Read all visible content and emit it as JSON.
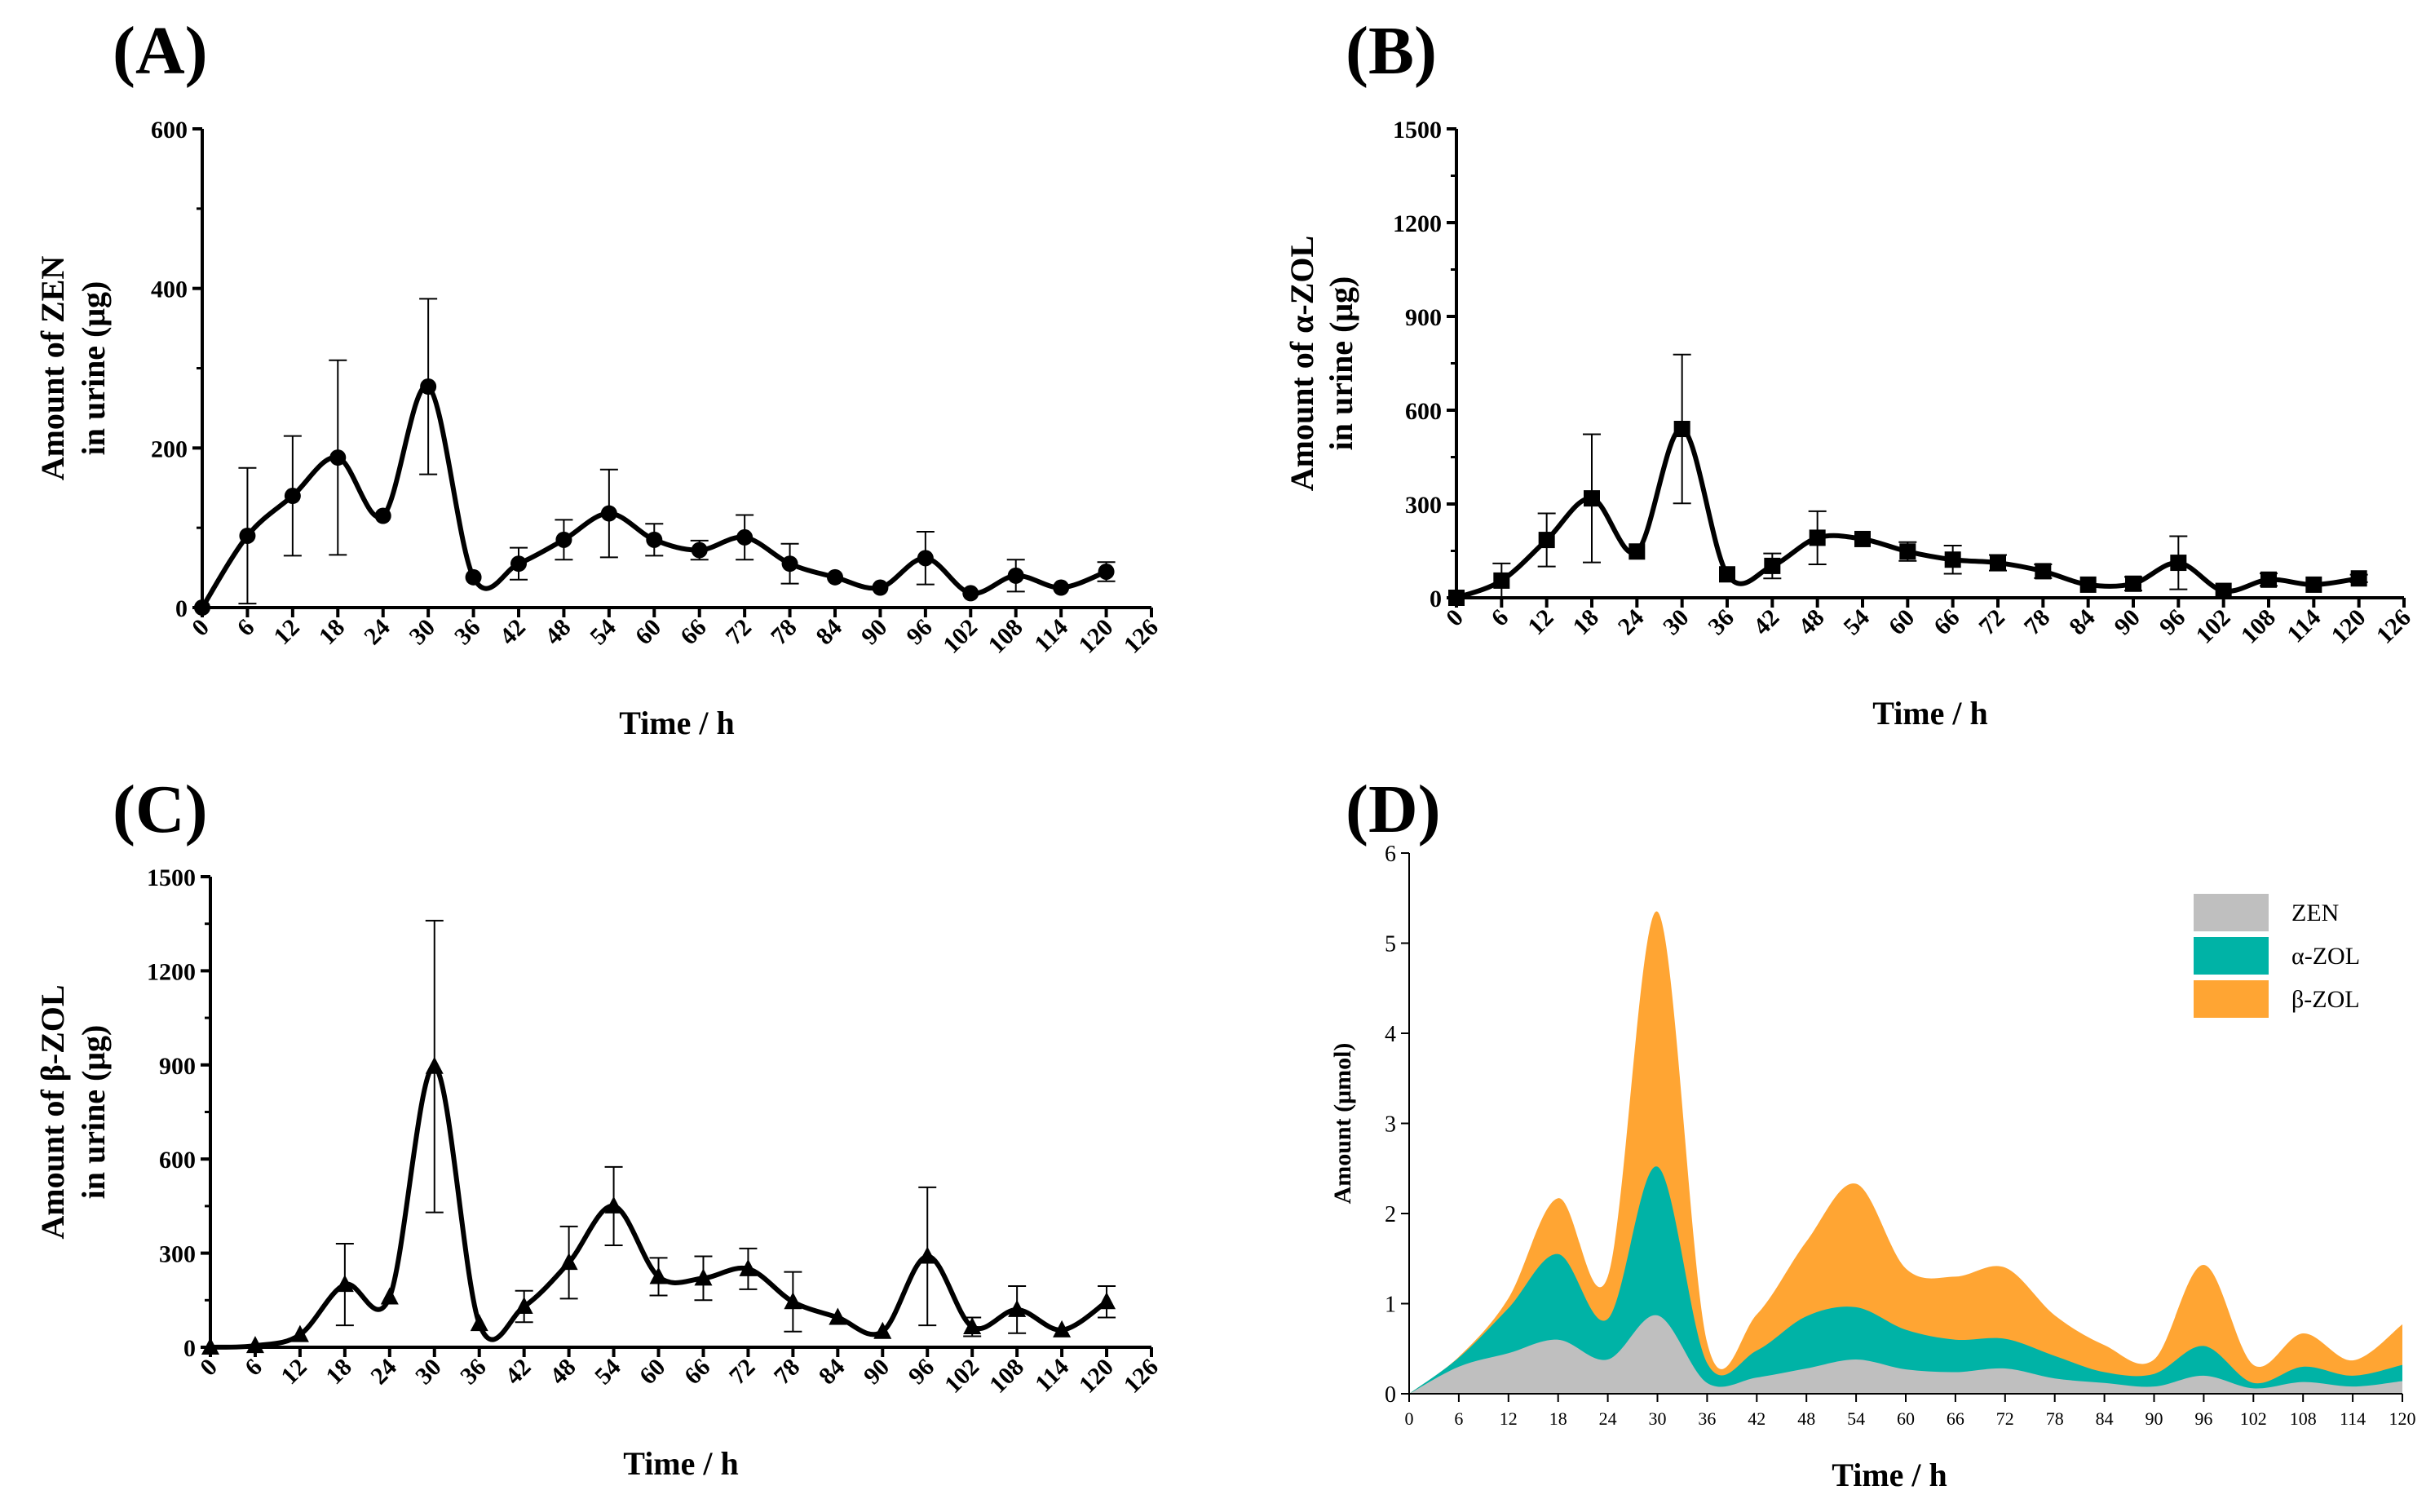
{
  "chart_data": [
    {
      "panel": "(A)",
      "type": "line",
      "marker": "circle",
      "xlabel": "Time / h",
      "ylabel_line1": "Amount of ZEN",
      "ylabel_line2": "in urine (μg)",
      "xlim": [
        0,
        126
      ],
      "ylim": [
        0,
        600
      ],
      "xticks": [
        "0",
        "6",
        "12",
        "18",
        "24",
        "30",
        "36",
        "42",
        "48",
        "54",
        "60",
        "66",
        "72",
        "78",
        "84",
        "90",
        "96",
        "102",
        "108",
        "114",
        "120",
        "126"
      ],
      "yticks": [
        "0",
        "200",
        "400",
        "600"
      ],
      "series": [
        {
          "name": "ZEN",
          "x": [
            0,
            6,
            12,
            18,
            24,
            30,
            36,
            42,
            48,
            54,
            60,
            66,
            72,
            78,
            84,
            90,
            96,
            102,
            108,
            114,
            120
          ],
          "y": [
            0,
            90,
            140,
            188,
            115,
            277,
            38,
            55,
            85,
            118,
            85,
            72,
            88,
            55,
            38,
            25,
            62,
            18,
            40,
            25,
            45
          ],
          "err": [
            0,
            85,
            75,
            122,
            0,
            110,
            0,
            20,
            25,
            55,
            20,
            12,
            28,
            25,
            0,
            0,
            33,
            0,
            20,
            0,
            12
          ]
        }
      ]
    },
    {
      "panel": "(B)",
      "type": "line",
      "marker": "square",
      "xlabel": "Time / h",
      "ylabel_line1": "Amount of α-ZOL",
      "ylabel_line2": "in urine (μg)",
      "xlim": [
        0,
        126
      ],
      "ylim": [
        0,
        1500
      ],
      "xticks": [
        "0",
        "6",
        "12",
        "18",
        "24",
        "30",
        "36",
        "42",
        "48",
        "54",
        "60",
        "66",
        "72",
        "78",
        "84",
        "90",
        "96",
        "102",
        "108",
        "114",
        "120",
        "126"
      ],
      "yticks": [
        "0",
        "300",
        "600",
        "900",
        "1200",
        "1500"
      ],
      "series": [
        {
          "name": "α-ZOL",
          "x": [
            0,
            6,
            12,
            18,
            24,
            30,
            36,
            42,
            48,
            54,
            60,
            66,
            72,
            78,
            84,
            90,
            96,
            102,
            108,
            114,
            120
          ],
          "y": [
            0,
            55,
            185,
            318,
            148,
            540,
            75,
            102,
            192,
            188,
            148,
            122,
            112,
            85,
            42,
            45,
            112,
            22,
            58,
            42,
            62
          ],
          "err": [
            0,
            55,
            85,
            205,
            0,
            238,
            0,
            40,
            85,
            0,
            30,
            45,
            25,
            22,
            0,
            22,
            85,
            0,
            20,
            0,
            12
          ]
        }
      ]
    },
    {
      "panel": "(C)",
      "type": "line",
      "marker": "triangle",
      "xlabel": "Time / h",
      "ylabel_line1": "Amount of β-ZOL",
      "ylabel_line2": "in urine (μg)",
      "xlim": [
        0,
        126
      ],
      "ylim": [
        0,
        1500
      ],
      "xticks": [
        "0",
        "6",
        "12",
        "18",
        "24",
        "30",
        "36",
        "42",
        "48",
        "54",
        "60",
        "66",
        "72",
        "78",
        "84",
        "90",
        "96",
        "102",
        "108",
        "114",
        "120",
        "126"
      ],
      "yticks": [
        "0",
        "300",
        "600",
        "900",
        "1200",
        "1500"
      ],
      "series": [
        {
          "name": "β-ZOL",
          "x": [
            0,
            6,
            12,
            18,
            24,
            30,
            36,
            42,
            48,
            54,
            60,
            66,
            72,
            78,
            84,
            90,
            96,
            102,
            108,
            114,
            120
          ],
          "y": [
            0,
            5,
            40,
            200,
            160,
            895,
            75,
            130,
            270,
            450,
            225,
            220,
            250,
            145,
            95,
            50,
            290,
            65,
            120,
            55,
            145
          ],
          "err": [
            0,
            0,
            0,
            130,
            0,
            465,
            0,
            50,
            115,
            125,
            60,
            70,
            65,
            95,
            0,
            0,
            220,
            30,
            75,
            0,
            50
          ]
        }
      ]
    },
    {
      "panel": "(D)",
      "type": "area",
      "stacked": true,
      "xlabel": "Time / h",
      "ylabel": "Amount (μmol)",
      "xlim": [
        0,
        120
      ],
      "ylim": [
        0,
        6
      ],
      "xticks": [
        "0",
        "6",
        "12",
        "18",
        "24",
        "30",
        "36",
        "42",
        "48",
        "54",
        "60",
        "66",
        "72",
        "78",
        "84",
        "90",
        "96",
        "102",
        "108",
        "114",
        "120"
      ],
      "yticks": [
        "0",
        "1",
        "2",
        "3",
        "4",
        "5",
        "6"
      ],
      "legend_position": "top-right",
      "x": [
        0,
        6,
        12,
        18,
        24,
        30,
        36,
        42,
        48,
        54,
        60,
        66,
        72,
        78,
        84,
        90,
        96,
        102,
        108,
        114,
        120
      ],
      "series": [
        {
          "name": "ZEN",
          "color": "#bfbfbf",
          "values": [
            0,
            0.3,
            0.45,
            0.6,
            0.38,
            0.87,
            0.12,
            0.18,
            0.28,
            0.38,
            0.27,
            0.24,
            0.28,
            0.17,
            0.12,
            0.08,
            0.2,
            0.06,
            0.13,
            0.08,
            0.14
          ]
        },
        {
          "name": "α-ZOL",
          "color": "#00b3a6",
          "values": [
            0,
            0.1,
            0.5,
            0.95,
            0.45,
            1.65,
            0.22,
            0.3,
            0.58,
            0.58,
            0.44,
            0.36,
            0.33,
            0.25,
            0.12,
            0.14,
            0.33,
            0.06,
            0.17,
            0.12,
            0.18
          ]
        },
        {
          "name": "β-ZOL",
          "color": "#ffa533",
          "values": [
            0,
            0.01,
            0.11,
            0.62,
            0.47,
            2.83,
            0.23,
            0.4,
            0.83,
            1.37,
            0.68,
            0.7,
            0.79,
            0.45,
            0.3,
            0.16,
            0.9,
            0.2,
            0.37,
            0.17,
            0.45
          ]
        }
      ]
    }
  ]
}
